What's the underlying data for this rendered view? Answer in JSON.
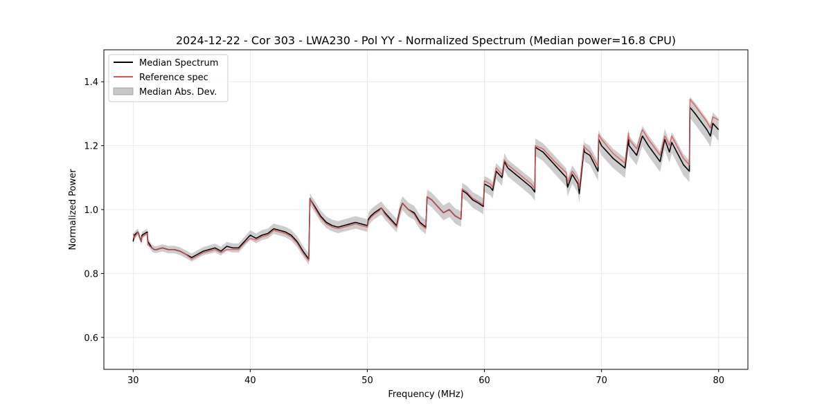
{
  "chart_data": {
    "type": "line",
    "title": "2024-12-22 - Cor 303 - LWA230 - Pol YY - Normalized Spectrum (Median power=16.8 CPU)",
    "xlabel": "Frequency (MHz)",
    "ylabel": "Normalized Power",
    "xlim": [
      27.5,
      82.5
    ],
    "ylim": [
      0.5,
      1.5
    ],
    "xticks": [
      30,
      40,
      50,
      60,
      70,
      80
    ],
    "yticks": [
      0.6,
      0.8,
      1.0,
      1.2,
      1.4
    ],
    "xtick_labels": [
      "30",
      "40",
      "50",
      "60",
      "70",
      "80"
    ],
    "ytick_labels": [
      "0.6",
      "0.8",
      "1.0",
      "1.2",
      "1.4"
    ],
    "grid": true,
    "legend_position": "upper-left",
    "legend": [
      {
        "label": "Median Spectrum",
        "color": "#000000",
        "kind": "line"
      },
      {
        "label": "Reference spec",
        "color": "#e05252",
        "kind": "line"
      },
      {
        "label": "Median Abs. Dev.",
        "color": "#c8c8c8",
        "kind": "patch"
      }
    ],
    "series": [
      {
        "name": "Median Spectrum",
        "color": "#000000",
        "x": [
          30.0,
          30.1,
          30.4,
          30.7,
          30.75,
          31.2,
          31.25,
          31.6,
          31.8,
          32.0,
          32.5,
          33.0,
          33.5,
          34.0,
          34.5,
          35.0,
          35.5,
          36.0,
          36.5,
          37.0,
          37.5,
          38.0,
          38.5,
          39.0,
          39.5,
          40.0,
          40.5,
          41.0,
          41.5,
          42.0,
          42.5,
          43.0,
          43.5,
          44.0,
          44.5,
          45.0,
          45.1,
          45.15,
          45.5,
          46.0,
          46.5,
          47.0,
          47.5,
          48.0,
          48.5,
          49.0,
          49.5,
          50.0,
          50.1,
          50.3,
          50.6,
          51.0,
          51.2,
          51.5,
          52.0,
          52.5,
          52.8,
          53.0,
          53.5,
          54.0,
          54.5,
          55.0,
          55.1,
          55.5,
          56.0,
          56.5,
          57.0,
          57.5,
          58.0,
          58.1,
          58.5,
          59.0,
          59.5,
          59.9,
          60.0,
          60.5,
          60.7,
          61.0,
          61.5,
          61.7,
          62.0,
          63.0,
          64.0,
          64.3,
          64.35,
          65.0,
          66.0,
          67.0,
          67.1,
          67.5,
          68.0,
          68.1,
          68.5,
          68.55,
          69.0,
          69.7,
          69.75,
          70.0,
          71.0,
          72.0,
          72.3,
          72.35,
          73.0,
          73.4,
          73.5,
          74.0,
          75.0,
          75.4,
          75.5,
          75.8,
          76.0,
          77.0,
          77.5,
          77.55,
          78.0,
          79.0,
          79.3,
          79.5,
          80.0
        ],
        "values": [
          0.9,
          0.92,
          0.93,
          0.9,
          0.92,
          0.93,
          0.9,
          0.88,
          0.875,
          0.875,
          0.88,
          0.875,
          0.875,
          0.87,
          0.86,
          0.85,
          0.86,
          0.87,
          0.875,
          0.88,
          0.87,
          0.885,
          0.88,
          0.88,
          0.9,
          0.92,
          0.91,
          0.92,
          0.925,
          0.94,
          0.935,
          0.93,
          0.92,
          0.9,
          0.87,
          0.845,
          1.035,
          1.03,
          1.01,
          0.98,
          0.96,
          0.95,
          0.945,
          0.95,
          0.955,
          0.96,
          0.955,
          0.95,
          0.97,
          0.98,
          0.99,
          1.0,
          1.005,
          0.99,
          0.97,
          0.95,
          1.0,
          1.02,
          1.0,
          0.99,
          0.96,
          0.945,
          1.04,
          1.03,
          1.01,
          0.99,
          1.0,
          0.98,
          0.97,
          1.06,
          1.05,
          1.03,
          1.02,
          1.01,
          1.08,
          1.07,
          1.06,
          1.12,
          1.1,
          1.15,
          1.13,
          1.1,
          1.07,
          1.055,
          1.195,
          1.18,
          1.14,
          1.1,
          1.07,
          1.11,
          1.08,
          1.05,
          1.19,
          1.18,
          1.17,
          1.12,
          1.22,
          1.2,
          1.16,
          1.13,
          1.22,
          1.2,
          1.17,
          1.22,
          1.23,
          1.2,
          1.15,
          1.22,
          1.21,
          1.18,
          1.21,
          1.14,
          1.12,
          1.32,
          1.3,
          1.25,
          1.23,
          1.27,
          1.25
        ]
      },
      {
        "name": "Reference spec",
        "color": "#e05252",
        "x": [
          30.0,
          30.1,
          30.4,
          30.7,
          30.75,
          31.2,
          31.25,
          31.6,
          31.8,
          32.0,
          32.5,
          33.0,
          33.5,
          34.0,
          34.5,
          35.0,
          35.5,
          36.0,
          36.5,
          37.0,
          37.5,
          38.0,
          38.5,
          39.0,
          39.5,
          40.0,
          40.5,
          41.0,
          41.5,
          42.0,
          42.5,
          43.0,
          43.5,
          44.0,
          44.5,
          45.0,
          45.1,
          45.15,
          45.5,
          46.0,
          46.5,
          47.0,
          47.5,
          48.0,
          48.5,
          49.0,
          49.5,
          50.0,
          50.1,
          50.3,
          50.6,
          51.0,
          51.2,
          51.5,
          52.0,
          52.5,
          52.8,
          53.0,
          53.5,
          54.0,
          54.5,
          55.0,
          55.1,
          55.5,
          56.0,
          56.5,
          57.0,
          57.5,
          58.0,
          58.1,
          58.5,
          59.0,
          59.5,
          59.9,
          60.0,
          60.5,
          60.7,
          61.0,
          61.5,
          61.7,
          62.0,
          63.0,
          64.0,
          64.3,
          64.35,
          65.0,
          66.0,
          67.0,
          67.1,
          67.5,
          68.0,
          68.1,
          68.5,
          68.55,
          69.0,
          69.7,
          69.75,
          70.0,
          71.0,
          72.0,
          72.3,
          72.35,
          73.0,
          73.4,
          73.5,
          74.0,
          75.0,
          75.4,
          75.5,
          75.8,
          76.0,
          77.0,
          77.5,
          77.55,
          78.0,
          79.0,
          79.3,
          79.5,
          80.0
        ],
        "values": [
          0.925,
          0.91,
          0.93,
          0.9,
          0.915,
          0.925,
          0.89,
          0.88,
          0.875,
          0.875,
          0.88,
          0.875,
          0.875,
          0.87,
          0.86,
          0.845,
          0.855,
          0.865,
          0.87,
          0.875,
          0.865,
          0.875,
          0.875,
          0.875,
          0.895,
          0.91,
          0.905,
          0.915,
          0.92,
          0.935,
          0.93,
          0.925,
          0.915,
          0.895,
          0.865,
          0.84,
          1.035,
          1.03,
          1.005,
          0.975,
          0.955,
          0.945,
          0.94,
          0.945,
          0.95,
          0.955,
          0.95,
          0.945,
          0.965,
          0.975,
          0.985,
          0.995,
          1.005,
          0.985,
          0.965,
          0.945,
          0.995,
          1.02,
          1.0,
          0.985,
          0.955,
          0.94,
          1.04,
          1.03,
          1.01,
          0.99,
          1.0,
          0.98,
          0.97,
          1.065,
          1.055,
          1.035,
          1.025,
          1.015,
          1.09,
          1.08,
          1.07,
          1.13,
          1.11,
          1.155,
          1.14,
          1.11,
          1.08,
          1.065,
          1.2,
          1.19,
          1.15,
          1.115,
          1.085,
          1.12,
          1.095,
          1.065,
          1.2,
          1.195,
          1.18,
          1.135,
          1.235,
          1.22,
          1.175,
          1.145,
          1.24,
          1.22,
          1.19,
          1.24,
          1.25,
          1.22,
          1.17,
          1.23,
          1.225,
          1.2,
          1.23,
          1.16,
          1.14,
          1.345,
          1.325,
          1.275,
          1.255,
          1.29,
          1.28
        ]
      }
    ],
    "mad_band": {
      "name": "Median Abs. Dev.",
      "color": "#c8c8c8",
      "half_width_start": 0.01,
      "half_width_end": 0.035
    }
  }
}
